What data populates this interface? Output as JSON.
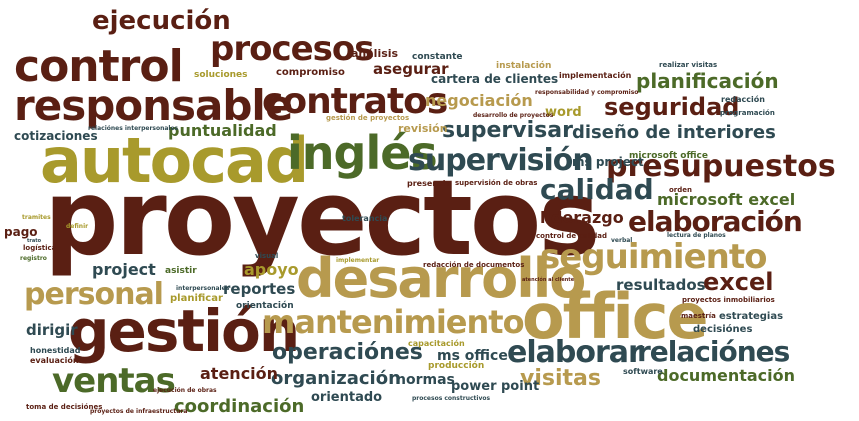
{
  "palette": {
    "brown": "#5a1f13",
    "olive": "#a89a2c",
    "khaki": "#b79a4e",
    "green": "#4c6a28",
    "slate": "#2f4a52",
    "tan": "#c7a26a",
    "dark": "#3a2a1a"
  },
  "words": [
    "proyectos",
    "autocad",
    "gestión",
    "office",
    "desarrollo",
    "inglés",
    "responsable",
    "control",
    "contratos",
    "procesos",
    "ejecución",
    "mantenimiento",
    "seguimiento",
    "presupuestos",
    "supervisión",
    "ventas",
    "elaborar",
    "relaciónes",
    "personal",
    "calidad",
    "elaboración",
    "supervisar",
    "seguridad",
    "planificación",
    "operaciónes",
    "diseño de interiores",
    "visitas",
    "excel",
    "organización",
    "coordinación",
    "documentación",
    "puntualidad",
    "negociación",
    "liderazgo",
    "microsoft excel",
    "project",
    "apoyo",
    "reportes",
    "atención",
    "resultados",
    "asegurar",
    "análisis",
    "cotizaciones",
    "dirigir",
    "ms project",
    "ms office",
    "normas",
    "power point",
    "orientado",
    "word",
    "cartera de clientes",
    "revisión",
    "compromiso",
    "soluciones",
    "pago",
    "constante",
    "instalación",
    "implementación",
    "realizar visitas",
    "redacción",
    "programación",
    "microsoft office",
    "asistir",
    "planificar",
    "orientación",
    "tolerancia",
    "estrategias",
    "decisiónes",
    "honestidad",
    "evaluación",
    "producción",
    "software",
    "capacitación",
    "presencia",
    "supervisión de obras",
    "gestión de proyectos",
    "desarrollo de proyectos",
    "responsabilidad y compromiso",
    "relaciónes interpersonales",
    "visual",
    "implementar",
    "redacción de documentos",
    "control de calidad",
    "verbal",
    "orden",
    "lectura de planos",
    "maestría",
    "proyectos inmobiliarios",
    "atención al cliente",
    "interpersonales",
    "ejecución de obras",
    "toma de decisiónes",
    "proyectos de infraestructura",
    "procesos constructivos",
    "tramites",
    "logística",
    "trato",
    "registro",
    "definir"
  ]
}
